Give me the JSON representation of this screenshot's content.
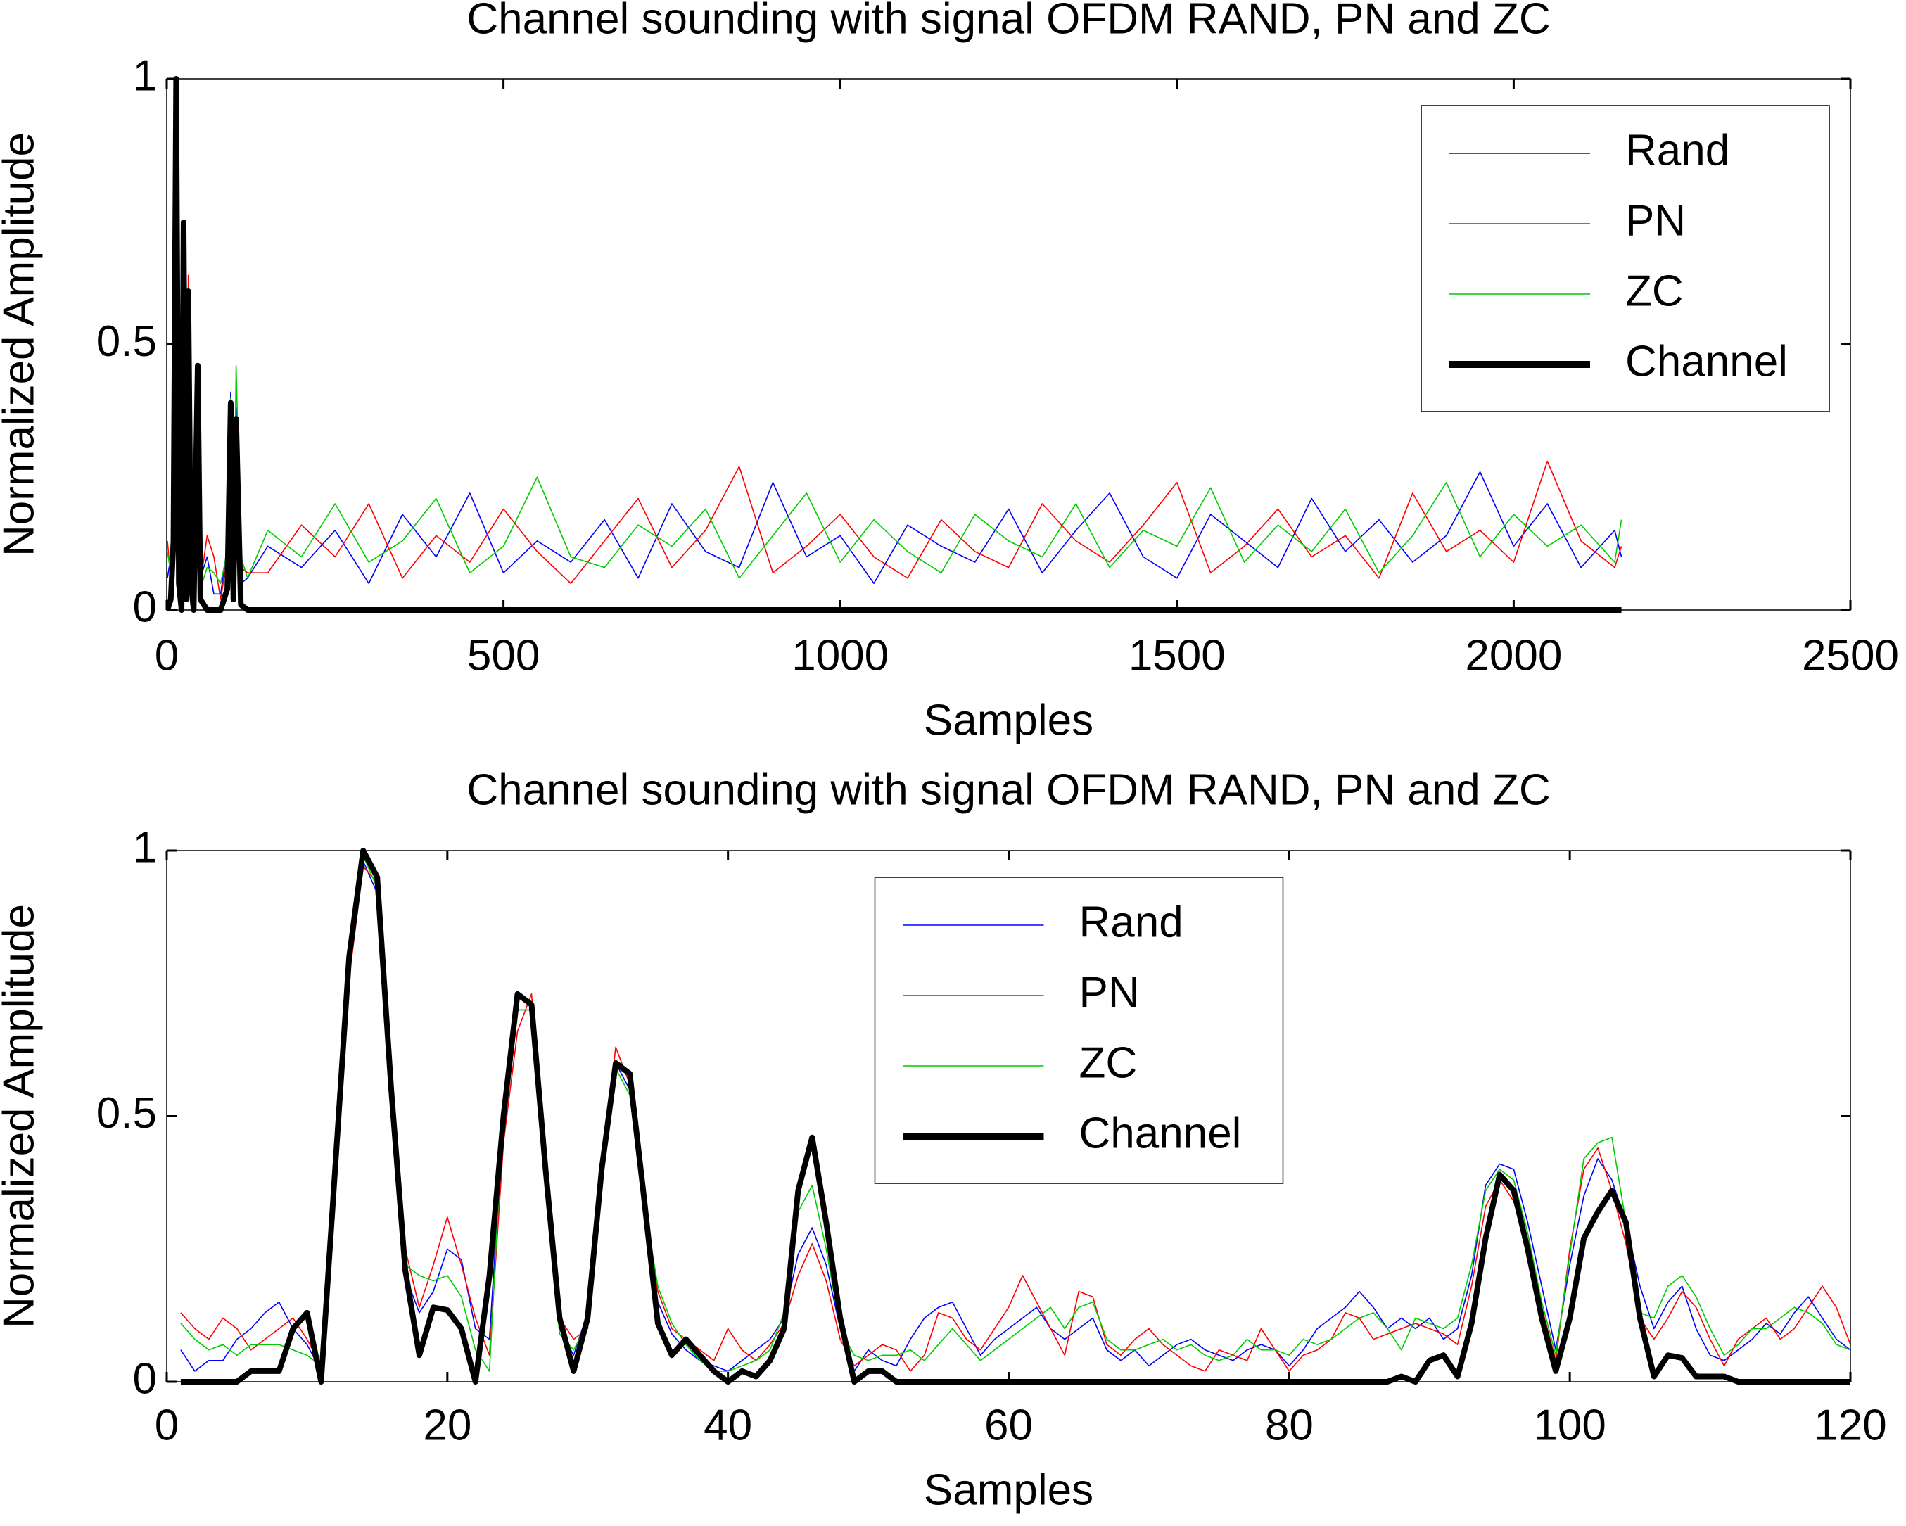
{
  "chart_data": [
    {
      "type": "line",
      "title": "Channel sounding with signal OFDM RAND, PN and ZC",
      "x_label": "Samples",
      "y_label": "Normalized Amplitude",
      "x": [
        1,
        6,
        10,
        14,
        18,
        22,
        25,
        29,
        32,
        36,
        40,
        46,
        50,
        60,
        70,
        80,
        90,
        95,
        99,
        103,
        110,
        120,
        150,
        200,
        250,
        300,
        350,
        400,
        450,
        500,
        550,
        600,
        650,
        700,
        750,
        800,
        850,
        900,
        950,
        1000,
        1050,
        1100,
        1150,
        1200,
        1250,
        1300,
        1350,
        1400,
        1450,
        1500,
        1550,
        1600,
        1650,
        1700,
        1750,
        1800,
        1850,
        1900,
        1950,
        2000,
        2050,
        2100,
        2150,
        2160
      ],
      "series": [
        {
          "name": "Rand",
          "color": "#0000ff",
          "values": [
            0.06,
            0.1,
            0.07,
            0.98,
            0.13,
            0.1,
            0.7,
            0.05,
            0.6,
            0.09,
            0.02,
            0.29,
            0.06,
            0.1,
            0.03,
            0.03,
            0.12,
            0.41,
            0.06,
            0.38,
            0.05,
            0.06,
            0.12,
            0.08,
            0.15,
            0.05,
            0.18,
            0.1,
            0.22,
            0.07,
            0.13,
            0.09,
            0.17,
            0.06,
            0.2,
            0.11,
            0.08,
            0.24,
            0.1,
            0.14,
            0.05,
            0.16,
            0.12,
            0.09,
            0.19,
            0.07,
            0.15,
            0.22,
            0.1,
            0.06,
            0.18,
            0.13,
            0.08,
            0.21,
            0.11,
            0.17,
            0.09,
            0.14,
            0.26,
            0.12,
            0.2,
            0.08,
            0.15,
            0.1
          ]
        },
        {
          "name": "PN",
          "color": "#ff0000",
          "values": [
            0.13,
            0.06,
            0.08,
            0.97,
            0.14,
            0.12,
            0.66,
            0.08,
            0.63,
            0.1,
            0.1,
            0.26,
            0.05,
            0.14,
            0.1,
            0.02,
            0.1,
            0.38,
            0.04,
            0.36,
            0.08,
            0.07,
            0.07,
            0.16,
            0.1,
            0.2,
            0.06,
            0.14,
            0.09,
            0.19,
            0.11,
            0.05,
            0.13,
            0.21,
            0.08,
            0.15,
            0.27,
            0.07,
            0.12,
            0.18,
            0.1,
            0.06,
            0.17,
            0.11,
            0.08,
            0.2,
            0.13,
            0.09,
            0.16,
            0.24,
            0.07,
            0.12,
            0.19,
            0.1,
            0.14,
            0.06,
            0.22,
            0.11,
            0.15,
            0.09,
            0.28,
            0.13,
            0.08,
            0.12
          ]
        },
        {
          "name": "ZC",
          "color": "#00cc00",
          "values": [
            0.11,
            0.07,
            0.05,
            0.99,
            0.2,
            0.06,
            0.7,
            0.06,
            0.59,
            0.11,
            0.02,
            0.37,
            0.04,
            0.08,
            0.07,
            0.05,
            0.11,
            0.4,
            0.05,
            0.46,
            0.1,
            0.06,
            0.15,
            0.1,
            0.2,
            0.09,
            0.13,
            0.21,
            0.07,
            0.12,
            0.25,
            0.1,
            0.08,
            0.16,
            0.12,
            0.19,
            0.06,
            0.14,
            0.22,
            0.09,
            0.17,
            0.11,
            0.07,
            0.18,
            0.13,
            0.1,
            0.2,
            0.08,
            0.15,
            0.12,
            0.23,
            0.09,
            0.16,
            0.11,
            0.19,
            0.07,
            0.14,
            0.24,
            0.1,
            0.18,
            0.12,
            0.16,
            0.09,
            0.17
          ]
        },
        {
          "name": "Channel",
          "color": "#000000",
          "values": [
            0,
            0.02,
            0.13,
            1,
            0.05,
            0,
            0.73,
            0.02,
            0.6,
            0.05,
            0,
            0.46,
            0.02,
            0,
            0,
            0,
            0.04,
            0.39,
            0.02,
            0.36,
            0.01,
            0,
            0,
            0,
            0,
            0,
            0,
            0,
            0,
            0,
            0,
            0,
            0,
            0,
            0,
            0,
            0,
            0,
            0,
            0,
            0,
            0,
            0,
            0,
            0,
            0,
            0,
            0,
            0,
            0,
            0,
            0,
            0,
            0,
            0,
            0,
            0,
            0,
            0,
            0,
            0,
            0,
            0,
            0
          ]
        }
      ],
      "xlim": [
        0,
        2500
      ],
      "xticks": [
        0,
        500,
        1000,
        1500,
        2000,
        2500
      ],
      "ylim": [
        0,
        1
      ],
      "yticks": [
        0,
        0.5,
        1
      ],
      "legend": "upper right"
    },
    {
      "type": "line",
      "title": "Channel sounding with signal OFDM RAND, PN and ZC",
      "x_label": "Samples",
      "y_label": "Normalized Amplitude",
      "x": [
        1,
        2,
        3,
        4,
        5,
        6,
        7,
        8,
        9,
        10,
        11,
        12,
        13,
        14,
        15,
        16,
        17,
        18,
        19,
        20,
        21,
        22,
        23,
        24,
        25,
        26,
        27,
        28,
        29,
        30,
        31,
        32,
        33,
        34,
        35,
        36,
        37,
        38,
        39,
        40,
        41,
        42,
        43,
        44,
        45,
        46,
        47,
        48,
        49,
        50,
        51,
        52,
        53,
        54,
        55,
        56,
        57,
        58,
        59,
        60,
        61,
        62,
        63,
        64,
        65,
        66,
        67,
        68,
        69,
        70,
        71,
        72,
        73,
        74,
        75,
        76,
        77,
        78,
        79,
        80,
        81,
        82,
        83,
        84,
        85,
        86,
        87,
        88,
        89,
        90,
        91,
        92,
        93,
        94,
        95,
        96,
        97,
        98,
        99,
        100,
        101,
        102,
        103,
        104,
        105,
        106,
        107,
        108,
        109,
        110,
        111,
        112,
        113,
        114,
        115,
        116,
        117,
        118,
        119,
        120
      ],
      "series": [
        {
          "name": "Rand",
          "color": "#0000ff",
          "values": [
            0.06,
            0.02,
            0.04,
            0.04,
            0.08,
            0.1,
            0.13,
            0.15,
            0.1,
            0.07,
            0.02,
            0.38,
            0.78,
            0.98,
            0.92,
            0.52,
            0.2,
            0.13,
            0.17,
            0.25,
            0.23,
            0.1,
            0.08,
            0.5,
            0.7,
            0.7,
            0.38,
            0.1,
            0.05,
            0.13,
            0.38,
            0.6,
            0.55,
            0.33,
            0.15,
            0.09,
            0.06,
            0.04,
            0.03,
            0.02,
            0.04,
            0.06,
            0.08,
            0.12,
            0.24,
            0.29,
            0.22,
            0.1,
            0.02,
            0.06,
            0.04,
            0.03,
            0.08,
            0.12,
            0.14,
            0.15,
            0.1,
            0.05,
            0.08,
            0.1,
            0.12,
            0.14,
            0.1,
            0.08,
            0.1,
            0.12,
            0.06,
            0.04,
            0.06,
            0.03,
            0.05,
            0.07,
            0.08,
            0.06,
            0.05,
            0.04,
            0.06,
            0.07,
            0.06,
            0.03,
            0.06,
            0.1,
            0.12,
            0.14,
            0.17,
            0.14,
            0.1,
            0.12,
            0.1,
            0.12,
            0.08,
            0.1,
            0.2,
            0.37,
            0.41,
            0.4,
            0.3,
            0.18,
            0.06,
            0.22,
            0.35,
            0.42,
            0.38,
            0.3,
            0.18,
            0.1,
            0.15,
            0.18,
            0.1,
            0.05,
            0.04,
            0.06,
            0.08,
            0.11,
            0.09,
            0.13,
            0.16,
            0.12,
            0.08,
            0.06
          ]
        },
        {
          "name": "PN",
          "color": "#ff0000",
          "values": [
            0.13,
            0.1,
            0.08,
            0.12,
            0.1,
            0.06,
            0.08,
            0.1,
            0.12,
            0.08,
            0.03,
            0.35,
            0.76,
            0.97,
            0.94,
            0.56,
            0.25,
            0.14,
            0.22,
            0.31,
            0.22,
            0.12,
            0.05,
            0.45,
            0.66,
            0.73,
            0.4,
            0.12,
            0.08,
            0.1,
            0.4,
            0.63,
            0.56,
            0.32,
            0.17,
            0.1,
            0.08,
            0.06,
            0.04,
            0.1,
            0.06,
            0.04,
            0.07,
            0.11,
            0.2,
            0.26,
            0.19,
            0.08,
            0.03,
            0.05,
            0.07,
            0.06,
            0.02,
            0.05,
            0.13,
            0.12,
            0.08,
            0.06,
            0.1,
            0.14,
            0.2,
            0.15,
            0.1,
            0.05,
            0.17,
            0.16,
            0.07,
            0.05,
            0.08,
            0.1,
            0.07,
            0.05,
            0.03,
            0.02,
            0.06,
            0.05,
            0.04,
            0.1,
            0.06,
            0.02,
            0.05,
            0.06,
            0.08,
            0.13,
            0.12,
            0.08,
            0.09,
            0.1,
            0.11,
            0.1,
            0.09,
            0.07,
            0.18,
            0.33,
            0.38,
            0.34,
            0.25,
            0.14,
            0.04,
            0.25,
            0.4,
            0.44,
            0.36,
            0.26,
            0.12,
            0.08,
            0.12,
            0.17,
            0.14,
            0.08,
            0.03,
            0.08,
            0.1,
            0.12,
            0.08,
            0.1,
            0.14,
            0.18,
            0.14,
            0.07
          ]
        },
        {
          "name": "ZC",
          "color": "#00cc00",
          "values": [
            0.11,
            0.08,
            0.06,
            0.07,
            0.05,
            0.07,
            0.07,
            0.07,
            0.06,
            0.05,
            0.03,
            0.4,
            0.8,
            0.99,
            0.93,
            0.53,
            0.22,
            0.2,
            0.19,
            0.2,
            0.16,
            0.06,
            0.02,
            0.52,
            0.7,
            0.7,
            0.36,
            0.09,
            0.06,
            0.11,
            0.39,
            0.59,
            0.54,
            0.34,
            0.18,
            0.11,
            0.07,
            0.04,
            0.02,
            0.02,
            0.03,
            0.04,
            0.06,
            0.13,
            0.32,
            0.37,
            0.25,
            0.1,
            0.05,
            0.04,
            0.05,
            0.05,
            0.06,
            0.04,
            0.07,
            0.1,
            0.07,
            0.04,
            0.06,
            0.08,
            0.1,
            0.12,
            0.14,
            0.1,
            0.14,
            0.15,
            0.08,
            0.06,
            0.06,
            0.07,
            0.08,
            0.06,
            0.07,
            0.05,
            0.04,
            0.05,
            0.08,
            0.06,
            0.06,
            0.05,
            0.08,
            0.07,
            0.08,
            0.1,
            0.12,
            0.13,
            0.1,
            0.06,
            0.12,
            0.11,
            0.1,
            0.12,
            0.22,
            0.36,
            0.4,
            0.38,
            0.28,
            0.15,
            0.05,
            0.24,
            0.42,
            0.45,
            0.46,
            0.3,
            0.13,
            0.12,
            0.18,
            0.2,
            0.16,
            0.1,
            0.05,
            0.07,
            0.1,
            0.1,
            0.12,
            0.14,
            0.13,
            0.11,
            0.07,
            0.06
          ]
        },
        {
          "name": "Channel",
          "color": "#000000",
          "values": [
            0,
            0,
            0,
            0,
            0,
            0.02,
            0.02,
            0.02,
            0.1,
            0.13,
            0,
            0.4,
            0.8,
            1,
            0.95,
            0.55,
            0.21,
            0.05,
            0.14,
            0.135,
            0.1,
            0,
            0.2,
            0.5,
            0.73,
            0.71,
            0.4,
            0.12,
            0.02,
            0.12,
            0.4,
            0.6,
            0.58,
            0.35,
            0.11,
            0.05,
            0.08,
            0.05,
            0.02,
            0,
            0.02,
            0.01,
            0.04,
            0.1,
            0.36,
            0.46,
            0.3,
            0.12,
            0,
            0.02,
            0.02,
            0,
            0,
            0,
            0,
            0,
            0,
            0,
            0,
            0,
            0,
            0,
            0,
            0,
            0,
            0,
            0,
            0,
            0,
            0,
            0,
            0,
            0,
            0,
            0,
            0,
            0,
            0,
            0,
            0,
            0,
            0,
            0,
            0,
            0,
            0,
            0,
            0.01,
            0,
            0.04,
            0.05,
            0.01,
            0.11,
            0.27,
            0.39,
            0.36,
            0.25,
            0.12,
            0.02,
            0.12,
            0.27,
            0.32,
            0.36,
            0.3,
            0.12,
            0.01,
            0.05,
            0.045,
            0.01,
            0.01,
            0.01,
            0,
            0,
            0,
            0,
            0,
            0,
            0,
            0,
            0
          ]
        }
      ],
      "xlim": [
        0,
        120
      ],
      "xticks": [
        0,
        20,
        40,
        60,
        80,
        100,
        120
      ],
      "ylim": [
        0,
        1
      ],
      "yticks": [
        0,
        0.5,
        1
      ],
      "legend": "upper center"
    }
  ]
}
